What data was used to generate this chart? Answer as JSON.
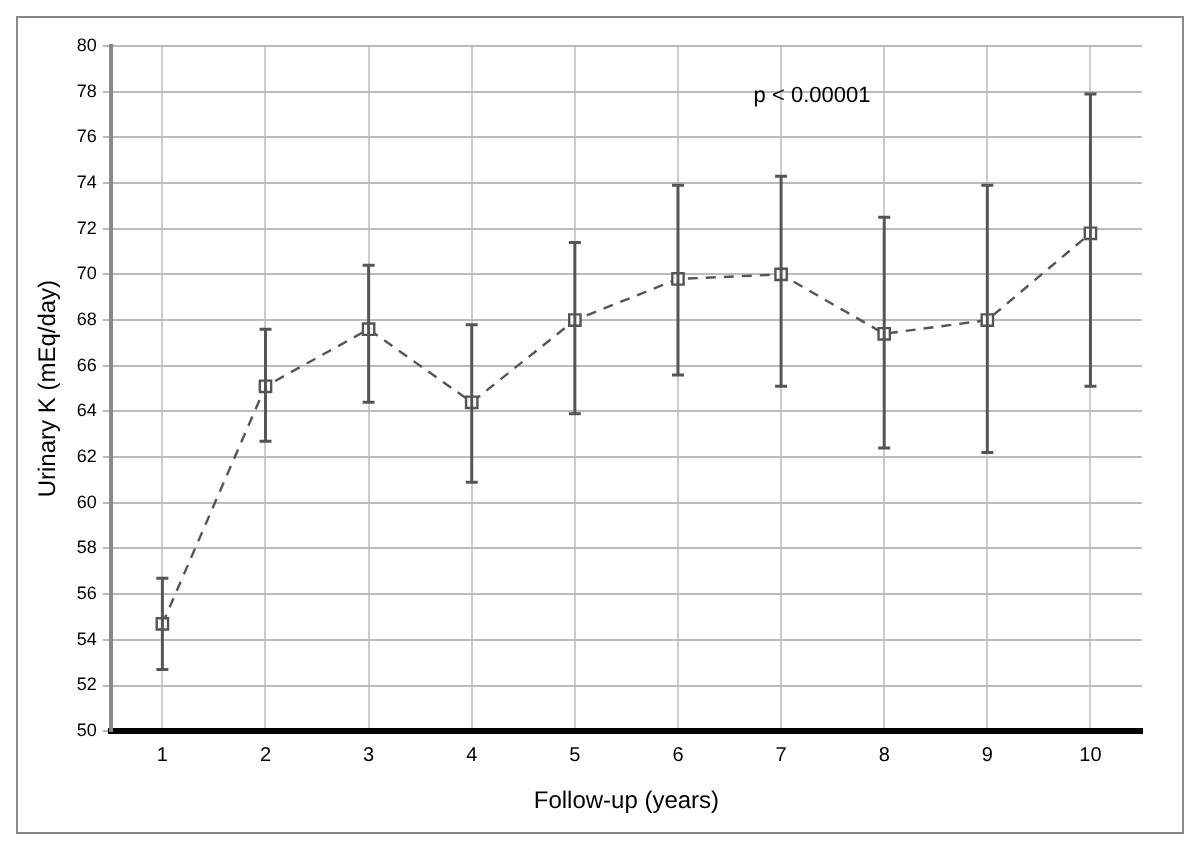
{
  "chart_data": {
    "type": "line",
    "xlabel": "Follow-up (years)",
    "ylabel": "Urinary K (mEq/day)",
    "categories": [
      "1",
      "2",
      "3",
      "4",
      "5",
      "6",
      "7",
      "8",
      "9",
      "10"
    ],
    "series": [
      {
        "color": "#555555",
        "values": [
          54.7,
          65.1,
          67.6,
          64.4,
          68.0,
          69.8,
          70.0,
          67.4,
          68.0,
          71.8
        ],
        "errors": [
          [
            52.7,
            56.7
          ],
          [
            62.7,
            67.6
          ],
          [
            64.4,
            70.4
          ],
          [
            60.9,
            67.8
          ],
          [
            63.9,
            71.4
          ],
          [
            65.6,
            73.9
          ],
          [
            65.1,
            74.3
          ],
          [
            62.4,
            72.5
          ],
          [
            62.2,
            73.9
          ],
          [
            65.1,
            77.9
          ]
        ]
      }
    ],
    "ylim": [
      50,
      80
    ],
    "yticks": [
      50,
      52,
      54,
      56,
      58,
      60,
      62,
      64,
      66,
      68,
      70,
      72,
      74,
      76,
      78,
      80
    ],
    "grid": true,
    "marker": "square",
    "line_style": "dashed",
    "legend": false,
    "annotations": [
      "p < 0.00001"
    ]
  }
}
